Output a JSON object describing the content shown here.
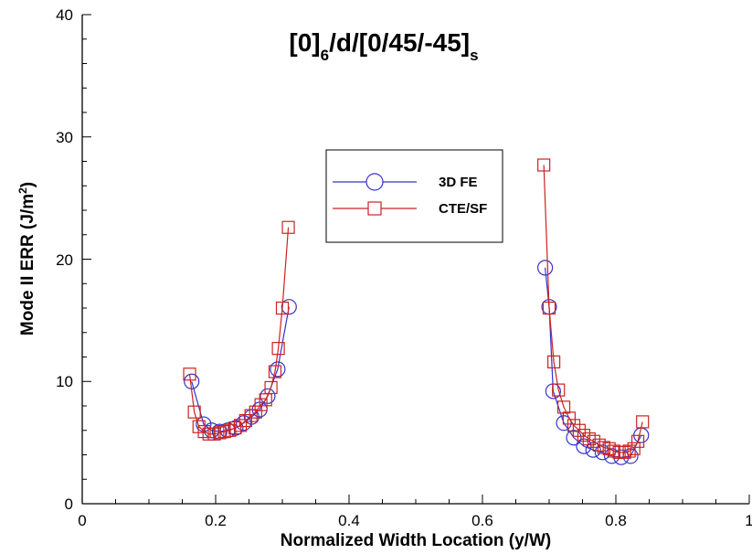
{
  "chart_data": {
    "type": "line",
    "title": "[0]6/d/[0/45/-45]s",
    "title_parts": {
      "a": "[0]",
      "b": "6",
      "c": "/d/[0/45/-45]",
      "d": "s"
    },
    "xlabel": "Normalized Width Location (y/W)",
    "ylabel_parts": {
      "main": "Mode II ERR (J/m",
      "sup": "2",
      "end": ")"
    },
    "xlim": [
      0,
      1
    ],
    "ylim": [
      0,
      40
    ],
    "xticks": [
      "0",
      "0.2",
      "0.4",
      "0.6",
      "0.8",
      "1"
    ],
    "yticks": [
      "0",
      "10",
      "20",
      "30",
      "40"
    ],
    "grid": false,
    "legend_position": "upper-center",
    "series": [
      {
        "name": "3D FE",
        "marker": "circle",
        "color": "#3333cc",
        "segments": [
          [
            [
              0.164,
              10.0
            ],
            [
              0.182,
              6.5
            ],
            [
              0.194,
              6.0
            ],
            [
              0.206,
              5.9
            ],
            [
              0.218,
              6.0
            ],
            [
              0.23,
              6.2
            ],
            [
              0.242,
              6.6
            ],
            [
              0.254,
              7.1
            ],
            [
              0.266,
              7.7
            ],
            [
              0.278,
              8.8
            ],
            [
              0.293,
              11.0
            ],
            [
              0.31,
              16.1
            ]
          ],
          [
            [
              0.694,
              19.3
            ],
            [
              0.7,
              16.1
            ],
            [
              0.706,
              9.2
            ],
            [
              0.722,
              6.6
            ],
            [
              0.737,
              5.4
            ],
            [
              0.752,
              4.7
            ],
            [
              0.766,
              4.4
            ],
            [
              0.78,
              4.2
            ],
            [
              0.794,
              3.9
            ],
            [
              0.808,
              3.8
            ],
            [
              0.822,
              3.9
            ],
            [
              0.838,
              5.6
            ]
          ]
        ]
      },
      {
        "name": "CTE/SF",
        "marker": "square",
        "color": "#cc2222",
        "segments": [
          [
            [
              0.161,
              10.6
            ],
            [
              0.168,
              7.5
            ],
            [
              0.175,
              6.3
            ],
            [
              0.183,
              5.9
            ],
            [
              0.19,
              5.7
            ],
            [
              0.198,
              5.7
            ],
            [
              0.206,
              5.8
            ],
            [
              0.213,
              5.9
            ],
            [
              0.221,
              6.0
            ],
            [
              0.229,
              6.2
            ],
            [
              0.237,
              6.4
            ],
            [
              0.245,
              6.8
            ],
            [
              0.253,
              7.2
            ],
            [
              0.26,
              7.5
            ],
            [
              0.268,
              8.1
            ],
            [
              0.275,
              8.5
            ],
            [
              0.283,
              9.5
            ],
            [
              0.289,
              10.8
            ],
            [
              0.294,
              12.7
            ],
            [
              0.3,
              16.0
            ],
            [
              0.309,
              22.6
            ]
          ],
          [
            [
              0.692,
              27.7
            ],
            [
              0.7,
              16.0
            ],
            [
              0.707,
              11.6
            ],
            [
              0.714,
              9.3
            ],
            [
              0.722,
              7.9
            ],
            [
              0.73,
              7.0
            ],
            [
              0.737,
              6.4
            ],
            [
              0.745,
              6.0
            ],
            [
              0.752,
              5.6
            ],
            [
              0.76,
              5.3
            ],
            [
              0.767,
              5.1
            ],
            [
              0.775,
              4.8
            ],
            [
              0.782,
              4.6
            ],
            [
              0.79,
              4.5
            ],
            [
              0.797,
              4.3
            ],
            [
              0.805,
              4.2
            ],
            [
              0.813,
              4.2
            ],
            [
              0.82,
              4.3
            ],
            [
              0.827,
              4.5
            ],
            [
              0.833,
              5.1
            ],
            [
              0.84,
              6.7
            ]
          ]
        ]
      }
    ]
  }
}
